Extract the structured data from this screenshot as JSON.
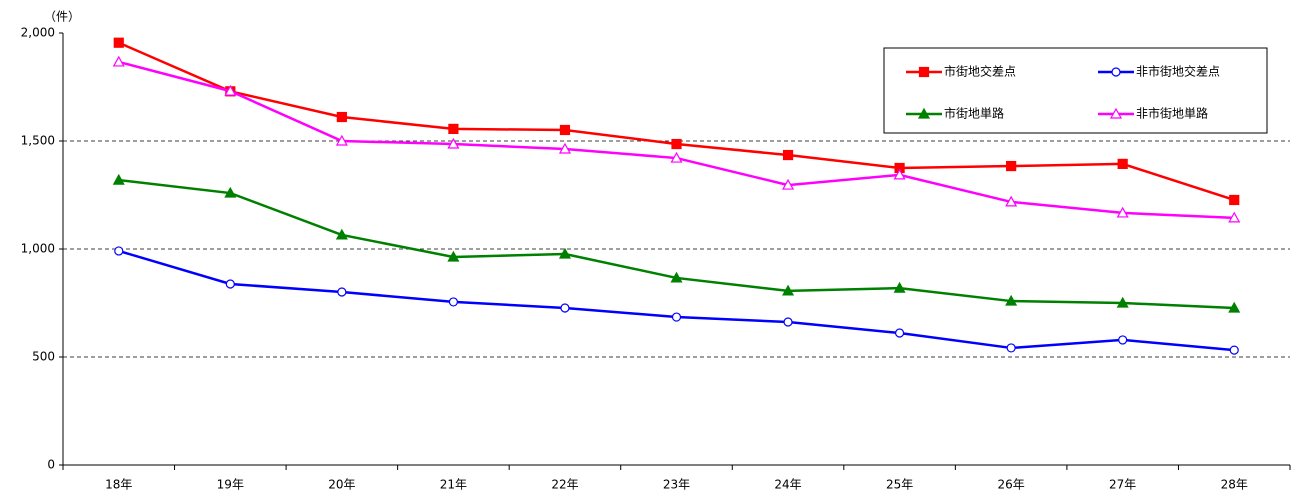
{
  "chart_data": {
    "type": "line",
    "y_unit": "（件）",
    "categories": [
      "18年",
      "19年",
      "20年",
      "21年",
      "22年",
      "23年",
      "24年",
      "25年",
      "26年",
      "27年",
      "28年"
    ],
    "series": [
      {
        "name": "市街地交差点",
        "color": "#ff0000",
        "marker": "square",
        "values": [
          1955,
          1730,
          1611,
          1556,
          1551,
          1486,
          1435,
          1375,
          1384,
          1394,
          1227
        ]
      },
      {
        "name": "非市街地交差点",
        "color": "#0000ff",
        "marker": "circle-open",
        "values": [
          991,
          838,
          801,
          755,
          727,
          685,
          662,
          611,
          542,
          579,
          532
        ]
      },
      {
        "name": "市街地単路",
        "color": "#008000",
        "marker": "triangle",
        "values": [
          1319,
          1259,
          1065,
          963,
          977,
          866,
          806,
          819,
          759,
          750,
          727
        ]
      },
      {
        "name": "非市街地単路",
        "color": "#ff00ff",
        "marker": "triangle-open",
        "values": [
          1866,
          1731,
          1500,
          1486,
          1463,
          1421,
          1296,
          1343,
          1218,
          1167,
          1144
        ]
      }
    ],
    "ylim": [
      0,
      2000
    ],
    "yticks": [
      0,
      500,
      {
        "value": 1000,
        "label": "1,000"
      },
      {
        "value": 1500,
        "label": "1,500"
      },
      {
        "value": 2000,
        "label": "2,000"
      }
    ],
    "grid": true,
    "legend": "upper right"
  }
}
